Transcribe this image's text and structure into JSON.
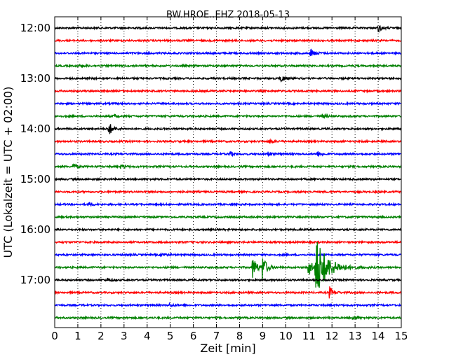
{
  "chart_data": {
    "type": "line",
    "title": "BW.HROE..EHZ 2018-05-13",
    "xlabel": "Zeit  [min]",
    "ylabel": "UTC (Lokalzeit = UTC + 02:00)",
    "xlim": [
      0,
      15
    ],
    "x_ticks": [
      "0",
      "1",
      "2",
      "3",
      "4",
      "5",
      "6",
      "7",
      "8",
      "9",
      "10",
      "11",
      "12",
      "13",
      "14",
      "15"
    ],
    "y_tick_labels": [
      "12:00",
      "13:00",
      "14:00",
      "15:00",
      "16:00",
      "17:00"
    ],
    "rows_per_hour": 4,
    "traces_start": "12:00",
    "trace_count": 24,
    "grid": "vertical-dotted",
    "colors": [
      "#000000",
      "#ff0000",
      "#0000ff",
      "#008000"
    ],
    "events": [
      {
        "trace": "12:00",
        "minute": 14.0,
        "amplitude": 0.6
      },
      {
        "trace": "12:30",
        "minute": 11.1,
        "amplitude": 0.6
      },
      {
        "trace": "12:45",
        "minute": 1.1,
        "amplitude": 0.2
      },
      {
        "trace": "13:00",
        "minute": 9.8,
        "amplitude": 0.5
      },
      {
        "trace": "13:45",
        "minute": 2.6,
        "amplitude": 0.25
      },
      {
        "trace": "13:45",
        "minute": 11.6,
        "amplitude": 0.25
      },
      {
        "trace": "14:00",
        "minute": 2.35,
        "amplitude": 1.0
      },
      {
        "trace": "14:15",
        "minute": 9.3,
        "amplitude": 0.35
      },
      {
        "trace": "14:30",
        "minute": 7.6,
        "amplitude": 0.3
      },
      {
        "trace": "14:30",
        "minute": 9.25,
        "amplitude": 0.35
      },
      {
        "trace": "14:30",
        "minute": 11.4,
        "amplitude": 0.35
      },
      {
        "trace": "14:45",
        "minute": 0.8,
        "amplitude": 0.4
      },
      {
        "trace": "14:45",
        "minute": 2.9,
        "amplitude": 0.25
      },
      {
        "trace": "15:30",
        "minute": 1.5,
        "amplitude": 0.3
      },
      {
        "trace": "16:30",
        "minute": 4.7,
        "amplitude": 0.25
      },
      {
        "trace": "16:45",
        "minute": 8.6,
        "amplitude": 1.6
      },
      {
        "trace": "16:45",
        "minute": 9.0,
        "amplitude": 2.0
      },
      {
        "trace": "16:45",
        "minute": 11.3,
        "amplitude": 5.0
      },
      {
        "trace": "16:45",
        "minute": 11.0,
        "amplitude": 1.4
      },
      {
        "trace": "17:00",
        "minute": 2.3,
        "amplitude": 0.25
      },
      {
        "trace": "17:15",
        "minute": 11.9,
        "amplitude": 0.9
      },
      {
        "trace": "17:30",
        "minute": 5.0,
        "amplitude": 0.2
      },
      {
        "trace": "17:45",
        "minute": 12.9,
        "amplitude": 0.3
      }
    ]
  }
}
